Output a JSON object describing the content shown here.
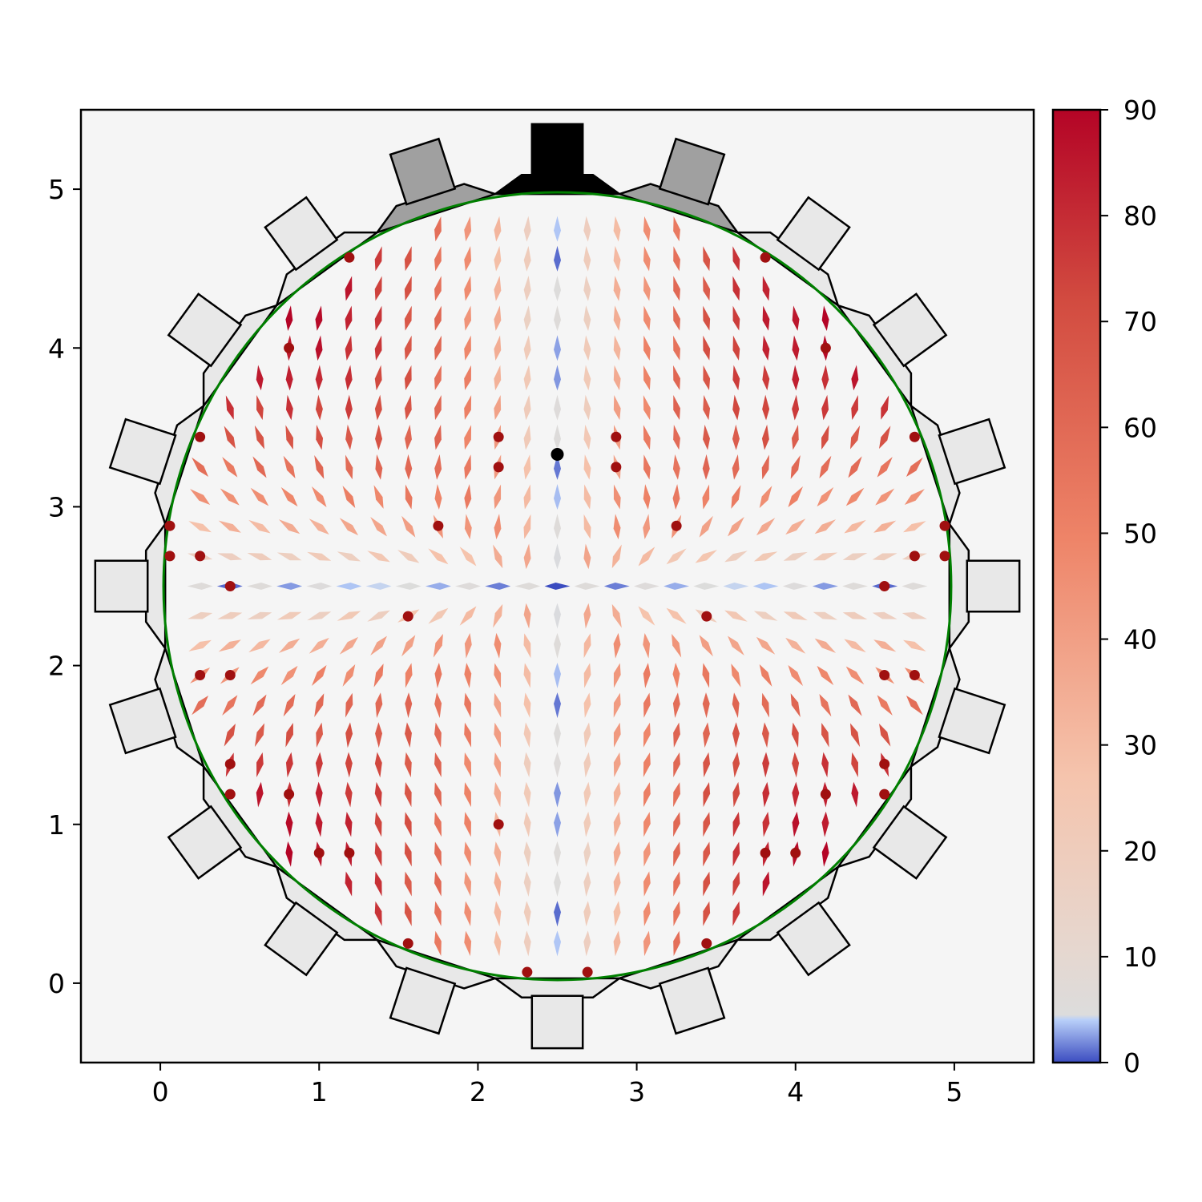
{
  "chart_data": {
    "type": "quiver",
    "title": "",
    "xlabel": "",
    "ylabel": "",
    "xlim": [
      -0.5,
      5.5
    ],
    "ylim": [
      -0.5,
      5.5
    ],
    "xticks": [
      "0",
      "1",
      "2",
      "3",
      "4",
      "5"
    ],
    "yticks": [
      "0",
      "1",
      "2",
      "3",
      "4",
      "5"
    ],
    "grid": false,
    "background_color": "#f5f5f5",
    "colorbar": {
      "colormap": "coolwarm",
      "range": [
        0,
        90
      ],
      "ticks": [
        "0",
        "10",
        "20",
        "30",
        "40",
        "50",
        "60",
        "70",
        "80",
        "90"
      ]
    },
    "circle": {
      "center": [
        2.5,
        2.5
      ],
      "radius": 2.48,
      "color": "#008000"
    },
    "ring": {
      "outer_radius": 2.6,
      "tab_count": 20,
      "top_tab_color": "#000000",
      "near_top_tab_color": "#a0a0a0",
      "tab_color": "#e8e8e8"
    },
    "center_point": {
      "x": 2.5,
      "y": 3.33,
      "color": "#000000"
    },
    "marker_color": "#a01010",
    "vector_field": {
      "grid_spacing": 0.1875,
      "center": [
        2.5,
        2.5
      ],
      "angle_unit": "degrees"
    },
    "point_defects": [
      {
        "x": 1.19,
        "y": 4.57
      },
      {
        "x": 3.81,
        "y": 4.57
      },
      {
        "x": 0.81,
        "y": 4.0
      },
      {
        "x": 4.19,
        "y": 4.0
      },
      {
        "x": 0.25,
        "y": 3.44
      },
      {
        "x": 2.13,
        "y": 3.44
      },
      {
        "x": 2.87,
        "y": 3.44
      },
      {
        "x": 4.75,
        "y": 3.44
      },
      {
        "x": 2.13,
        "y": 3.25
      },
      {
        "x": 2.87,
        "y": 3.25
      },
      {
        "x": 0.06,
        "y": 2.88
      },
      {
        "x": 1.75,
        "y": 2.88
      },
      {
        "x": 3.25,
        "y": 2.88
      },
      {
        "x": 4.94,
        "y": 2.88
      },
      {
        "x": 0.06,
        "y": 2.69
      },
      {
        "x": 0.25,
        "y": 2.69
      },
      {
        "x": 4.75,
        "y": 2.69
      },
      {
        "x": 4.94,
        "y": 2.69
      },
      {
        "x": 0.44,
        "y": 2.5
      },
      {
        "x": 4.56,
        "y": 2.5
      },
      {
        "x": 1.56,
        "y": 2.31
      },
      {
        "x": 3.44,
        "y": 2.31
      },
      {
        "x": 0.25,
        "y": 1.94
      },
      {
        "x": 0.44,
        "y": 1.94
      },
      {
        "x": 4.56,
        "y": 1.94
      },
      {
        "x": 4.75,
        "y": 1.94
      },
      {
        "x": 0.44,
        "y": 1.38
      },
      {
        "x": 4.56,
        "y": 1.38
      },
      {
        "x": 0.44,
        "y": 1.19
      },
      {
        "x": 0.81,
        "y": 1.19
      },
      {
        "x": 4.19,
        "y": 1.19
      },
      {
        "x": 4.56,
        "y": 1.19
      },
      {
        "x": 2.13,
        "y": 1.0
      },
      {
        "x": 1.0,
        "y": 0.82
      },
      {
        "x": 1.19,
        "y": 0.82
      },
      {
        "x": 3.81,
        "y": 0.82
      },
      {
        "x": 4.0,
        "y": 0.82
      },
      {
        "x": 1.56,
        "y": 0.25
      },
      {
        "x": 3.44,
        "y": 0.25
      },
      {
        "x": 2.31,
        "y": 0.07
      },
      {
        "x": 2.69,
        "y": 0.07
      }
    ]
  }
}
